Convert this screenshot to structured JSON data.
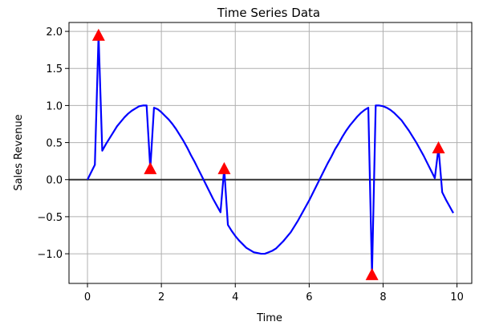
{
  "chart_data": {
    "type": "line",
    "title": "Time Series Data",
    "xlabel": "Time",
    "ylabel": "Sales Revenue",
    "xlim": [
      -0.5,
      10.4
    ],
    "ylim": [
      -1.4,
      2.12
    ],
    "xticks": [
      0,
      2,
      4,
      6,
      8,
      10
    ],
    "yticks": [
      -1.0,
      -0.5,
      0.0,
      0.5,
      1.0,
      1.5,
      2.0
    ],
    "xtick_labels": [
      "0",
      "2",
      "4",
      "6",
      "8",
      "10"
    ],
    "ytick_labels": [
      "−1.0",
      "−0.5",
      "0.0",
      "0.5",
      "1.0",
      "1.5",
      "2.0"
    ],
    "grid": true,
    "reference_line": {
      "y": 0,
      "color": "#333333"
    },
    "series": [
      {
        "color": "#0000ff",
        "x": [
          0.0,
          0.1,
          0.2,
          0.3,
          0.4,
          0.5,
          0.6,
          0.7,
          0.8,
          0.9,
          1.0,
          1.1,
          1.2,
          1.3,
          1.4,
          1.5,
          1.6,
          1.7,
          1.8,
          1.9,
          2.0,
          2.1,
          2.2,
          2.3,
          2.4,
          2.5,
          2.6,
          2.7,
          2.8,
          2.9,
          3.0,
          3.1,
          3.2,
          3.3,
          3.4,
          3.5,
          3.6,
          3.7,
          3.8,
          3.9,
          4.0,
          4.1,
          4.2,
          4.3,
          4.4,
          4.5,
          4.6,
          4.7,
          4.8,
          4.9,
          5.0,
          5.1,
          5.2,
          5.3,
          5.4,
          5.5,
          5.6,
          5.7,
          5.8,
          5.9,
          6.0,
          6.1,
          6.2,
          6.3,
          6.4,
          6.5,
          6.6,
          6.7,
          6.8,
          6.9,
          7.0,
          7.1,
          7.2,
          7.3,
          7.4,
          7.5,
          7.6,
          7.7,
          7.8,
          7.9,
          8.0,
          8.1,
          8.2,
          8.3,
          8.4,
          8.5,
          8.6,
          8.7,
          8.8,
          8.9,
          9.0,
          9.1,
          9.2,
          9.3,
          9.4,
          9.5,
          9.6,
          9.7,
          9.8,
          9.9
        ],
        "y": [
          0.0,
          0.1,
          0.2,
          1.95,
          0.39,
          0.48,
          0.56,
          0.64,
          0.72,
          0.78,
          0.84,
          0.89,
          0.93,
          0.96,
          0.99,
          1.0,
          1.0,
          0.15,
          0.97,
          0.95,
          0.91,
          0.86,
          0.81,
          0.75,
          0.68,
          0.6,
          0.52,
          0.43,
          0.33,
          0.24,
          0.14,
          0.04,
          -0.06,
          -0.16,
          -0.26,
          -0.35,
          -0.44,
          0.15,
          -0.61,
          -0.69,
          -0.76,
          -0.82,
          -0.87,
          -0.92,
          -0.95,
          -0.98,
          -0.99,
          -1.0,
          -1.0,
          -0.98,
          -0.96,
          -0.93,
          -0.88,
          -0.83,
          -0.77,
          -0.71,
          -0.63,
          -0.55,
          -0.46,
          -0.37,
          -0.28,
          -0.18,
          -0.08,
          0.02,
          0.12,
          0.22,
          0.31,
          0.41,
          0.49,
          0.58,
          0.66,
          0.73,
          0.79,
          0.85,
          0.9,
          0.94,
          0.97,
          -1.28,
          1.0,
          1.0,
          0.99,
          0.97,
          0.94,
          0.9,
          0.85,
          0.8,
          0.73,
          0.66,
          0.58,
          0.5,
          0.41,
          0.32,
          0.22,
          0.12,
          0.02,
          0.43,
          -0.17,
          -0.27,
          -0.36,
          -0.45
        ]
      }
    ],
    "markers": {
      "symbol": "triangle-up",
      "color": "#ff0000",
      "points": [
        {
          "x": 0.3,
          "y": 1.95
        },
        {
          "x": 1.7,
          "y": 0.15
        },
        {
          "x": 3.7,
          "y": 0.15
        },
        {
          "x": 7.7,
          "y": -1.28
        },
        {
          "x": 9.5,
          "y": 0.43
        }
      ]
    }
  }
}
